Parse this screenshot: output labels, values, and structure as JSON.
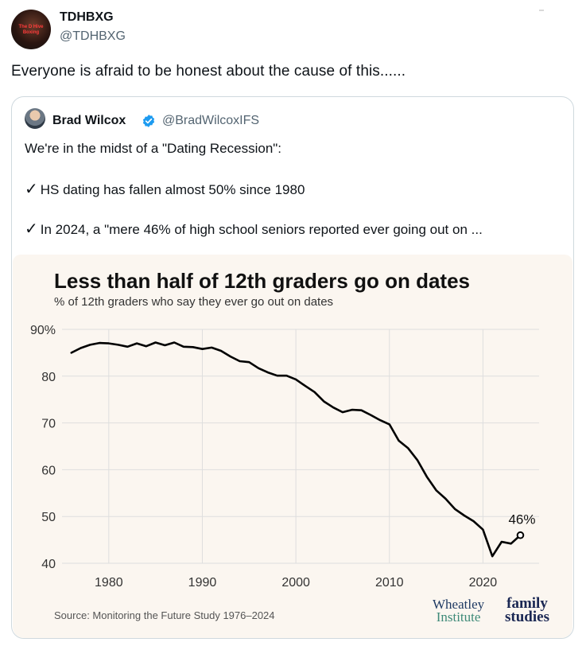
{
  "post": {
    "author_name": "TDHBXG",
    "author_handle": "@TDHBXG",
    "avatar_text_line1": "The D Hive",
    "avatar_text_line2": "Boxing",
    "text": "Everyone is afraid to be honest about the cause of this......"
  },
  "quote": {
    "author_name": "Brad Wilcox",
    "author_handle": "@BradWilcoxIFS",
    "line1": "We're in the midst of a \"Dating Recession\":",
    "check_mark": "✓",
    "line2": "HS dating has fallen almost 50% since 1980",
    "line3": "In 2024, a \"mere 46% of high school seniors reported ever going out on ..."
  },
  "chart_data": {
    "type": "line",
    "title": "Less than half of 12th graders go on dates",
    "subtitle": "% of 12th graders who say they ever go out on dates",
    "xlabel": "",
    "ylabel": "",
    "xlim": [
      1975,
      2026
    ],
    "ylim": [
      40,
      90
    ],
    "x_ticks": [
      1980,
      1990,
      2000,
      2010,
      2020
    ],
    "y_ticks": [
      40,
      50,
      60,
      70,
      80,
      90
    ],
    "y_tick_labels": [
      "40",
      "50",
      "60",
      "70",
      "80",
      "90%"
    ],
    "grid": true,
    "annotation": {
      "label": "46%",
      "x": 2024,
      "y": 46
    },
    "source": "Source: Monitoring the Future Study 1976–2024",
    "logos": {
      "left_line1": "Wheatley",
      "left_line2": "Institute",
      "right_line1": "family",
      "right_line2": "studies"
    },
    "colors": {
      "line": "#000000",
      "background": "#fbf6f0",
      "grid": "#dedede"
    },
    "series": [
      {
        "name": "% who ever go on dates",
        "x": [
          1976,
          1977,
          1978,
          1979,
          1980,
          1981,
          1982,
          1983,
          1984,
          1985,
          1986,
          1987,
          1988,
          1989,
          1990,
          1991,
          1992,
          1993,
          1994,
          1995,
          1996,
          1997,
          1998,
          1999,
          2000,
          2001,
          2002,
          2003,
          2004,
          2005,
          2006,
          2007,
          2008,
          2009,
          2010,
          2011,
          2012,
          2013,
          2014,
          2015,
          2016,
          2017,
          2018,
          2019,
          2020,
          2021,
          2022,
          2023,
          2024
        ],
        "values": [
          85.0,
          86.0,
          86.7,
          87.1,
          87.0,
          86.7,
          86.3,
          87.0,
          86.4,
          87.2,
          86.6,
          87.2,
          86.3,
          86.2,
          85.8,
          86.1,
          85.4,
          84.2,
          83.2,
          83.0,
          81.7,
          80.8,
          80.1,
          80.1,
          79.3,
          77.9,
          76.6,
          74.6,
          73.3,
          72.3,
          72.8,
          72.7,
          71.7,
          70.6,
          69.7,
          66.2,
          64.6,
          62.0,
          58.5,
          55.6,
          53.8,
          51.6,
          50.2,
          49.0,
          47.2,
          41.5,
          44.6,
          44.2,
          46.0
        ]
      }
    ]
  }
}
